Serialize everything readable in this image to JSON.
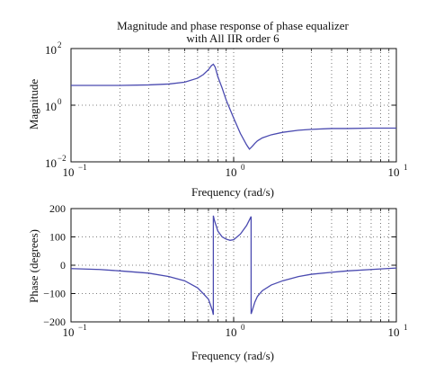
{
  "chart_data": [
    {
      "type": "line",
      "title_lines": [
        "Magnitude and phase response of phase equalizer",
        "with All IIR order 6"
      ],
      "xlabel": "Frequency (rad/s)",
      "ylabel": "Magnitude",
      "xscale": "log",
      "yscale": "log",
      "xlim": [
        0.1,
        10
      ],
      "ylim": [
        0.01,
        100
      ],
      "grid": true,
      "x_ticks": [
        {
          "value": 0.1,
          "base": "10",
          "exp": "−1"
        },
        {
          "value": 1,
          "base": "10",
          "exp": "0"
        },
        {
          "value": 10,
          "base": "10",
          "exp": "1"
        }
      ],
      "y_ticks": [
        {
          "value": 0.01,
          "base": "10",
          "exp": "−2"
        },
        {
          "value": 1,
          "base": "10",
          "exp": "0"
        },
        {
          "value": 100,
          "base": "10",
          "exp": "2"
        }
      ],
      "series": [
        {
          "color": "#4a4ab0",
          "x": [
            0.1,
            0.2,
            0.3,
            0.4,
            0.5,
            0.6,
            0.65,
            0.7,
            0.73,
            0.75,
            0.77,
            0.8,
            0.85,
            0.9,
            1.0,
            1.1,
            1.2,
            1.25,
            1.3,
            1.35,
            1.4,
            1.5,
            1.7,
            2.0,
            2.5,
            3.0,
            4.0,
            5.0,
            7.0,
            10.0
          ],
          "y": [
            5.0,
            5.0,
            5.2,
            5.6,
            6.5,
            9.0,
            12.0,
            18.0,
            25.0,
            28.0,
            22.0,
            10.0,
            4.0,
            1.5,
            0.35,
            0.1,
            0.04,
            0.028,
            0.035,
            0.045,
            0.055,
            0.07,
            0.09,
            0.11,
            0.13,
            0.14,
            0.15,
            0.15,
            0.155,
            0.155
          ]
        }
      ]
    },
    {
      "type": "line",
      "xlabel": "Frequency (rad/s)",
      "ylabel": "Phase (degrees)",
      "xscale": "log",
      "xlim": [
        0.1,
        10
      ],
      "ylim": [
        -200,
        200
      ],
      "grid": true,
      "x_ticks": [
        {
          "value": 0.1,
          "base": "10",
          "exp": "−1"
        },
        {
          "value": 1,
          "base": "10",
          "exp": "0"
        },
        {
          "value": 10,
          "base": "10",
          "exp": "1"
        }
      ],
      "y_ticks": [
        {
          "value": -200,
          "label": "−200"
        },
        {
          "value": -100,
          "label": "−100"
        },
        {
          "value": 0,
          "label": "0"
        },
        {
          "value": 100,
          "label": "100"
        },
        {
          "value": 200,
          "label": "200"
        }
      ],
      "series": [
        {
          "color": "#4a4ab0",
          "x": [
            0.1,
            0.15,
            0.2,
            0.3,
            0.4,
            0.5,
            0.6,
            0.65,
            0.7,
            0.72,
            0.74,
            0.75,
            0.75,
            0.76,
            0.8,
            0.85,
            0.9,
            0.95,
            1.0,
            1.1,
            1.2,
            1.25,
            1.28,
            1.28,
            1.3,
            1.35,
            1.4,
            1.5,
            1.7,
            2.0,
            2.5,
            3.0,
            4.0,
            5.0,
            7.0,
            10.0
          ],
          "y": [
            -12,
            -15,
            -20,
            -28,
            -40,
            -55,
            -80,
            -100,
            -120,
            -140,
            -160,
            -175,
            175,
            160,
            120,
            100,
            92,
            88,
            90,
            110,
            140,
            160,
            172,
            -172,
            -160,
            -130,
            -110,
            -90,
            -70,
            -55,
            -40,
            -32,
            -25,
            -20,
            -15,
            -10
          ]
        }
      ]
    }
  ]
}
